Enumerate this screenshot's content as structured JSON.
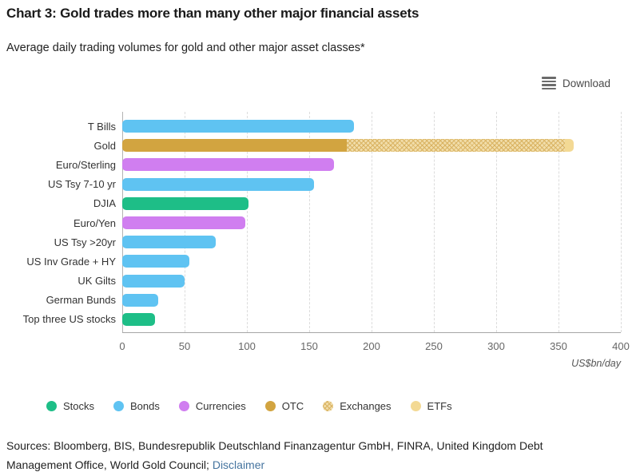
{
  "page": {
    "title": "Chart 3: Gold trades more than many other major financial assets",
    "subtitle": "Average daily trading volumes for gold and other major asset classes*",
    "download_label": "Download",
    "sources_prefix": "Sources: Bloomberg, BIS, Bundesrepublik Deutschland Finanzagentur GmbH, FINRA, United Kingdom Debt Management Office, World Gold Council; ",
    "disclaimer_label": "Disclaimer"
  },
  "colors": {
    "stocks": "#1ebe87",
    "bonds": "#5fc3f2",
    "currencies": "#d07ef0",
    "otc": "#d2a440",
    "exchanges_base": "#f1dda9",
    "exchanges_line": "#d9b261",
    "etfs": "#f3d994",
    "link": "#45749f"
  },
  "chart_data": {
    "type": "bar",
    "orientation": "horizontal",
    "title": "Chart 3: Gold trades more than many other major financial assets",
    "subtitle": "Average daily trading volumes for gold and other major asset classes*",
    "xlabel": "US$bn/day",
    "ylabel": "",
    "xlim": [
      0,
      400
    ],
    "xticks": [
      0,
      50,
      100,
      150,
      200,
      250,
      300,
      350,
      400
    ],
    "grid": true,
    "legend_position": "bottom",
    "legend": [
      {
        "label": "Stocks",
        "color_key": "stocks",
        "swatch": "solid"
      },
      {
        "label": "Bonds",
        "color_key": "bonds",
        "swatch": "solid"
      },
      {
        "label": "Currencies",
        "color_key": "currencies",
        "swatch": "solid"
      },
      {
        "label": "OTC",
        "color_key": "otc",
        "swatch": "solid"
      },
      {
        "label": "Exchanges",
        "color_key": "exchanges",
        "swatch": "hatched"
      },
      {
        "label": "ETFs",
        "color_key": "etfs",
        "swatch": "solid"
      }
    ],
    "rows": [
      {
        "category": "T Bills",
        "segments": [
          {
            "series": "Bonds",
            "value": 186,
            "color_key": "bonds"
          }
        ]
      },
      {
        "category": "Gold",
        "segments": [
          {
            "series": "OTC",
            "value": 180,
            "color_key": "otc"
          },
          {
            "series": "Exchanges",
            "value": 175,
            "color_key": "exchanges",
            "hatched": true
          },
          {
            "series": "ETFs",
            "value": 7,
            "color_key": "etfs"
          }
        ]
      },
      {
        "category": "Euro/Sterling",
        "segments": [
          {
            "series": "Currencies",
            "value": 170,
            "color_key": "currencies"
          }
        ]
      },
      {
        "category": "US Tsy 7-10 yr",
        "segments": [
          {
            "series": "Bonds",
            "value": 154,
            "color_key": "bonds"
          }
        ]
      },
      {
        "category": "DJIA",
        "segments": [
          {
            "series": "Stocks",
            "value": 101,
            "color_key": "stocks"
          }
        ]
      },
      {
        "category": "Euro/Yen",
        "segments": [
          {
            "series": "Currencies",
            "value": 99,
            "color_key": "currencies"
          }
        ]
      },
      {
        "category": "US Tsy >20yr",
        "segments": [
          {
            "series": "Bonds",
            "value": 75,
            "color_key": "bonds"
          }
        ]
      },
      {
        "category": "US Inv Grade + HY",
        "segments": [
          {
            "series": "Bonds",
            "value": 54,
            "color_key": "bonds"
          }
        ]
      },
      {
        "category": "UK Gilts",
        "segments": [
          {
            "series": "Bonds",
            "value": 50,
            "color_key": "bonds"
          }
        ]
      },
      {
        "category": "German Bunds",
        "segments": [
          {
            "series": "Bonds",
            "value": 29,
            "color_key": "bonds"
          }
        ]
      },
      {
        "category": "Top three US stocks",
        "segments": [
          {
            "series": "Stocks",
            "value": 26,
            "color_key": "stocks"
          }
        ]
      }
    ]
  }
}
